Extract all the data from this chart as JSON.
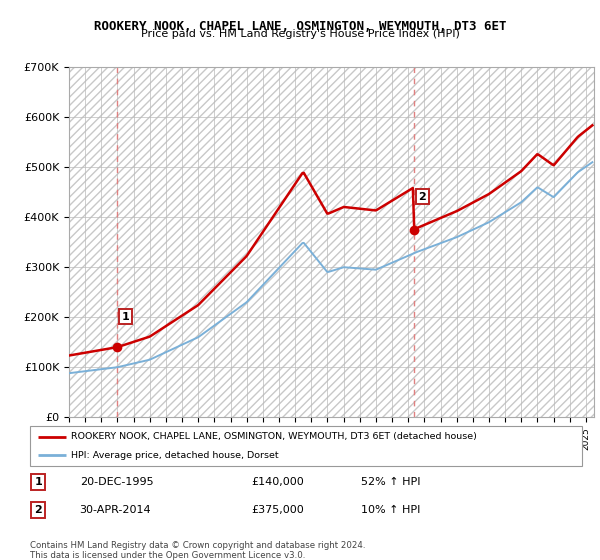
{
  "title": "ROOKERY NOOK, CHAPEL LANE, OSMINGTON, WEYMOUTH, DT3 6ET",
  "subtitle": "Price paid vs. HM Land Registry's House Price Index (HPI)",
  "ylim": [
    0,
    700000
  ],
  "yticks": [
    0,
    100000,
    200000,
    300000,
    400000,
    500000,
    600000,
    700000
  ],
  "ytick_labels": [
    "£0",
    "£100K",
    "£200K",
    "£300K",
    "£400K",
    "£500K",
    "£600K",
    "£700K"
  ],
  "sale1": {
    "date_num": 1995.97,
    "price": 140000,
    "label": "1"
  },
  "sale2": {
    "date_num": 2014.33,
    "price": 375000,
    "label": "2"
  },
  "hpi_color": "#7ab0d8",
  "price_color": "#cc0000",
  "vline_color": "#e08080",
  "legend_line1": "ROOKERY NOOK, CHAPEL LANE, OSMINGTON, WEYMOUTH, DT3 6ET (detached house)",
  "legend_line2": "HPI: Average price, detached house, Dorset",
  "table_row1": [
    "1",
    "20-DEC-1995",
    "£140,000",
    "52% ↑ HPI"
  ],
  "table_row2": [
    "2",
    "30-APR-2014",
    "£375,000",
    "10% ↑ HPI"
  ],
  "footnote": "Contains HM Land Registry data © Crown copyright and database right 2024.\nThis data is licensed under the Open Government Licence v3.0.",
  "xmin": 1993.0,
  "xmax": 2025.5
}
